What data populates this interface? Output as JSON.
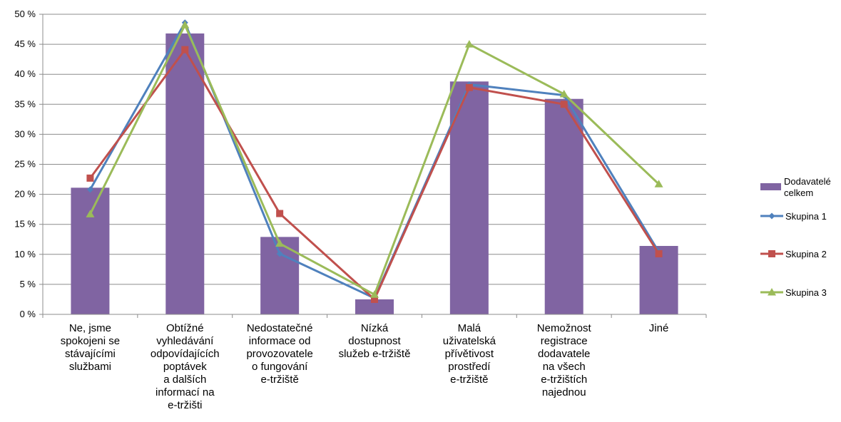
{
  "chart_data": {
    "type": "bar",
    "categories": [
      [
        "Ne, jsme",
        "spokojeni se",
        "stávajícími",
        "službami"
      ],
      [
        "Obtížné",
        "vyhledávání",
        "odpovídajících",
        "poptávek",
        "a dalších",
        "informací na",
        "e-tržišti"
      ],
      [
        "Nedostatečné",
        "informace od",
        "provozovatele",
        "o fungování",
        "e-tržiště"
      ],
      [
        "Nízká",
        "dostupnost",
        "služeb e-tržiště"
      ],
      [
        "Malá",
        "uživatelská",
        "přívětivost",
        "prostředí",
        "e-tržiště"
      ],
      [
        "Nemožnost",
        "registrace",
        "dodavatele",
        "na všech",
        "e-tržištích",
        "najednou"
      ],
      [
        "Jiné"
      ]
    ],
    "ylim": [
      0,
      50
    ],
    "yticks": [
      0,
      5,
      10,
      15,
      20,
      25,
      30,
      35,
      40,
      45,
      50
    ],
    "ytick_suffix": " %",
    "grid": true,
    "legend_position": "right",
    "series": [
      {
        "name": [
          "Dodavatelé",
          "celkem"
        ],
        "kind": "bar",
        "color": "#8064A2",
        "values": [
          21.1,
          46.8,
          12.9,
          2.5,
          38.8,
          35.9,
          11.4
        ]
      },
      {
        "name": [
          "Skupina 1"
        ],
        "kind": "line",
        "marker": "diamond",
        "color": "#4F81BD",
        "values": [
          20.8,
          48.6,
          10.1,
          2.7,
          38.3,
          36.5,
          10.4
        ]
      },
      {
        "name": [
          "Skupina 2"
        ],
        "kind": "line",
        "marker": "square",
        "color": "#C0504D",
        "values": [
          22.7,
          44.1,
          16.8,
          2.5,
          37.8,
          35.0,
          10.1
        ]
      },
      {
        "name": [
          "Skupina 3"
        ],
        "kind": "line",
        "marker": "triangle",
        "color": "#9BBB59",
        "values": [
          16.7,
          48.2,
          11.8,
          3.3,
          45.0,
          36.7,
          21.7
        ]
      }
    ]
  }
}
